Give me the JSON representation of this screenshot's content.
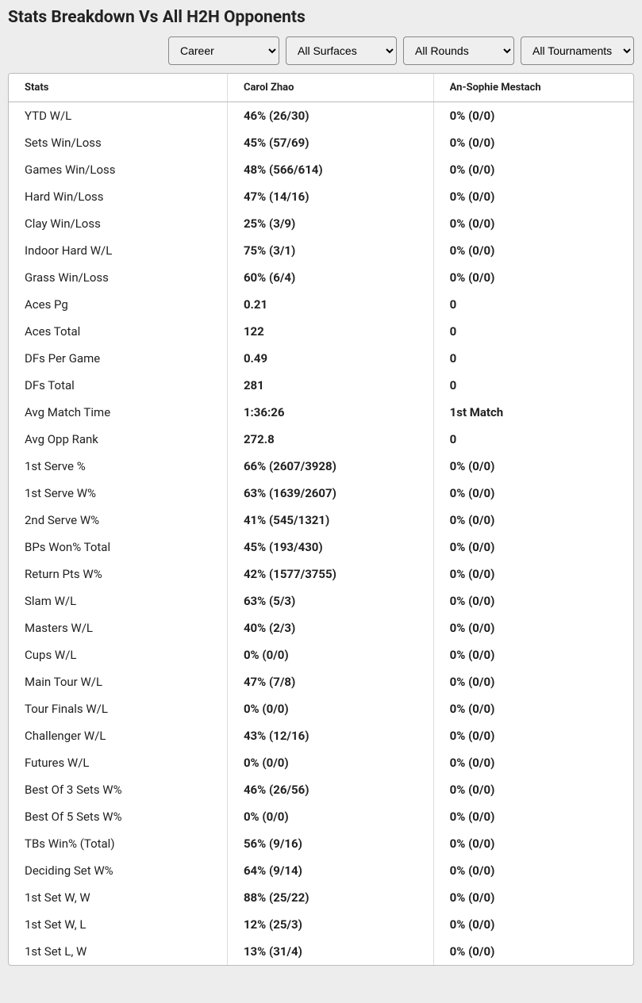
{
  "title": "Stats Breakdown Vs All H2H Opponents",
  "filters": {
    "period": {
      "selected": "Career",
      "options": [
        "Career"
      ]
    },
    "surface": {
      "selected": "All Surfaces",
      "options": [
        "All Surfaces"
      ]
    },
    "round": {
      "selected": "All Rounds",
      "options": [
        "All Rounds"
      ]
    },
    "tourney": {
      "selected": "All Tournaments",
      "options": [
        "All Tournaments"
      ]
    }
  },
  "columns": [
    "Stats",
    "Carol Zhao",
    "An-Sophie Mestach"
  ],
  "rows": [
    [
      "YTD W/L",
      "46% (26/30)",
      "0% (0/0)"
    ],
    [
      "Sets Win/Loss",
      "45% (57/69)",
      "0% (0/0)"
    ],
    [
      "Games Win/Loss",
      "48% (566/614)",
      "0% (0/0)"
    ],
    [
      "Hard Win/Loss",
      "47% (14/16)",
      "0% (0/0)"
    ],
    [
      "Clay Win/Loss",
      "25% (3/9)",
      "0% (0/0)"
    ],
    [
      "Indoor Hard W/L",
      "75% (3/1)",
      "0% (0/0)"
    ],
    [
      "Grass Win/Loss",
      "60% (6/4)",
      "0% (0/0)"
    ],
    [
      "Aces Pg",
      "0.21",
      "0"
    ],
    [
      "Aces Total",
      "122",
      "0"
    ],
    [
      "DFs Per Game",
      "0.49",
      "0"
    ],
    [
      "DFs Total",
      "281",
      "0"
    ],
    [
      "Avg Match Time",
      "1:36:26",
      "1st Match"
    ],
    [
      "Avg Opp Rank",
      "272.8",
      "0"
    ],
    [
      "1st Serve %",
      "66% (2607/3928)",
      "0% (0/0)"
    ],
    [
      "1st Serve W%",
      "63% (1639/2607)",
      "0% (0/0)"
    ],
    [
      "2nd Serve W%",
      "41% (545/1321)",
      "0% (0/0)"
    ],
    [
      "BPs Won% Total",
      "45% (193/430)",
      "0% (0/0)"
    ],
    [
      "Return Pts W%",
      "42% (1577/3755)",
      "0% (0/0)"
    ],
    [
      "Slam W/L",
      "63% (5/3)",
      "0% (0/0)"
    ],
    [
      "Masters W/L",
      "40% (2/3)",
      "0% (0/0)"
    ],
    [
      "Cups W/L",
      "0% (0/0)",
      "0% (0/0)"
    ],
    [
      "Main Tour W/L",
      "47% (7/8)",
      "0% (0/0)"
    ],
    [
      "Tour Finals W/L",
      "0% (0/0)",
      "0% (0/0)"
    ],
    [
      "Challenger W/L",
      "43% (12/16)",
      "0% (0/0)"
    ],
    [
      "Futures W/L",
      "0% (0/0)",
      "0% (0/0)"
    ],
    [
      "Best Of 3 Sets W%",
      "46% (26/56)",
      "0% (0/0)"
    ],
    [
      "Best Of 5 Sets W%",
      "0% (0/0)",
      "0% (0/0)"
    ],
    [
      "TBs Win% (Total)",
      "56% (9/16)",
      "0% (0/0)"
    ],
    [
      "Deciding Set W%",
      "64% (9/14)",
      "0% (0/0)"
    ],
    [
      "1st Set W, W",
      "88% (25/22)",
      "0% (0/0)"
    ],
    [
      "1st Set W, L",
      "12% (25/3)",
      "0% (0/0)"
    ],
    [
      "1st Set L, W",
      "13% (31/4)",
      "0% (0/0)"
    ]
  ],
  "colors": {
    "page_bg": "#ededed",
    "card_bg": "#ffffff",
    "border": "#bbbbbb",
    "cell_divider": "#dddddd",
    "text": "#222222"
  }
}
